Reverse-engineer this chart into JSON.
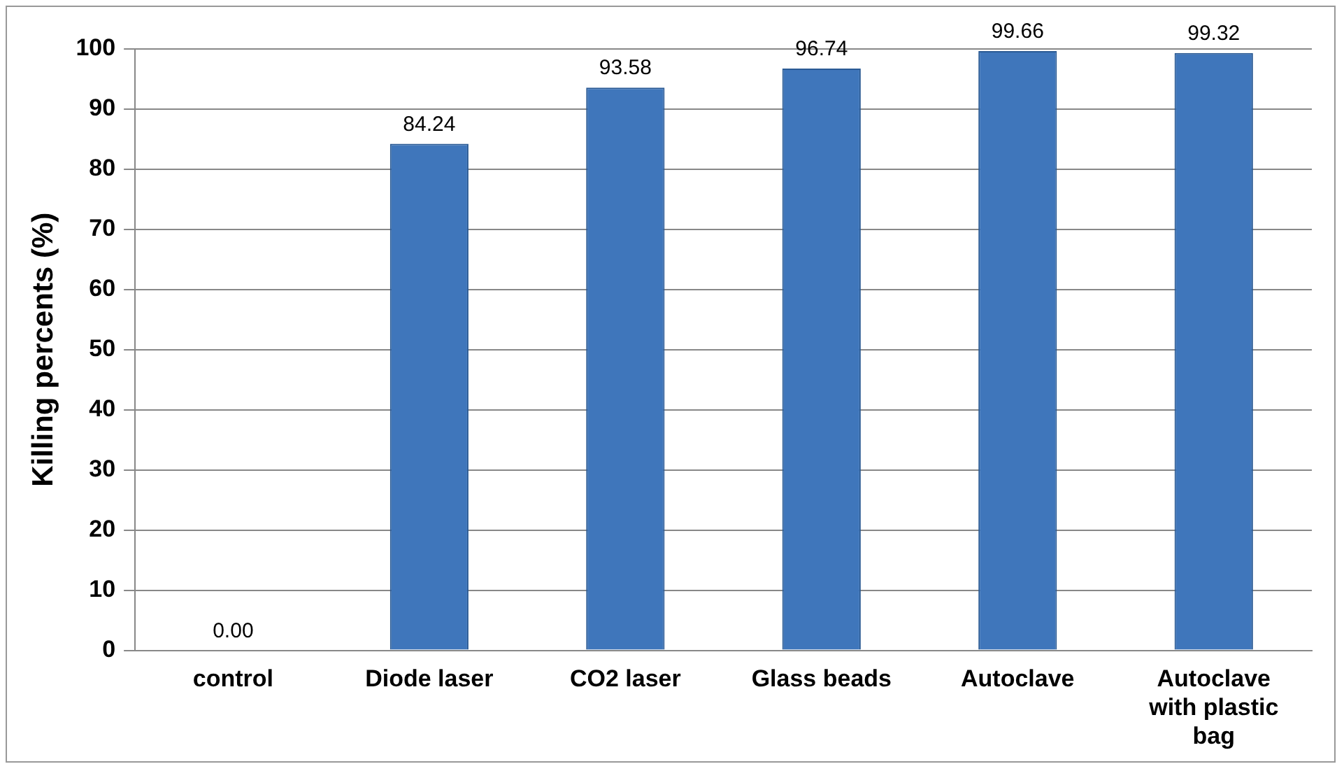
{
  "chart_data": {
    "type": "bar",
    "ylabel": "Killing percents (%)",
    "categories": [
      "control",
      "Diode laser",
      "CO2 laser",
      "Glass beads",
      "Autoclave",
      "Autoclave with plastic bag"
    ],
    "values": [
      0.0,
      84.24,
      93.58,
      96.74,
      99.66,
      99.32
    ],
    "value_labels": [
      "0.00",
      "84.24",
      "93.58",
      "96.74",
      "99.66",
      "99.32"
    ],
    "color": "#3f76bb",
    "ylim": [
      0,
      100
    ],
    "yticks": [
      0,
      10,
      20,
      30,
      40,
      50,
      60,
      70,
      80,
      90,
      100
    ],
    "grid": "y"
  }
}
